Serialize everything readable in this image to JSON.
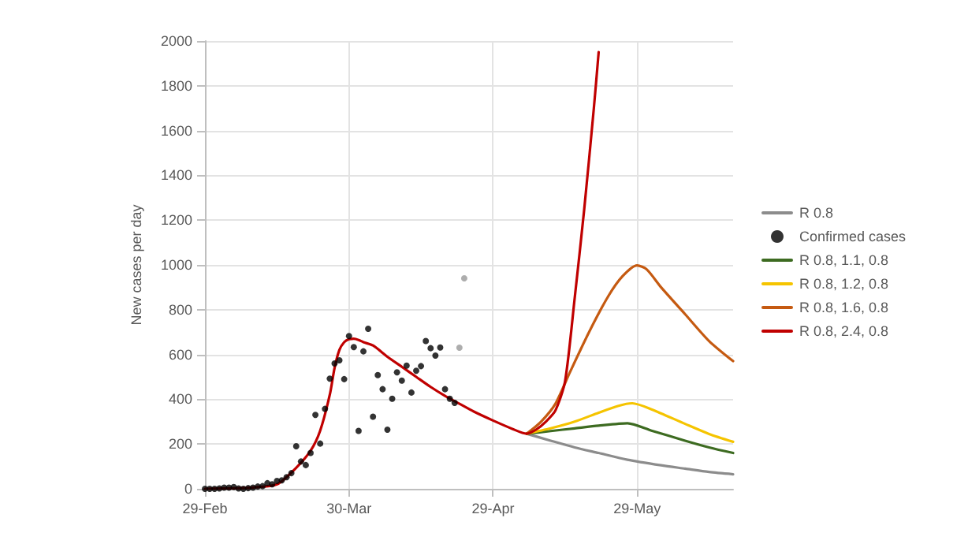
{
  "chart_data": {
    "type": "line",
    "ylabel": "New cases per day",
    "xlim": [
      "--02-29",
      "--06-18"
    ],
    "xticks": [
      {
        "value": "--02-29",
        "label": "29-Feb"
      },
      {
        "value": "--03-30",
        "label": "30-Mar"
      },
      {
        "value": "--04-29",
        "label": "29-Apr"
      },
      {
        "value": "--05-29",
        "label": "29-May"
      }
    ],
    "ylim": [
      0,
      2000
    ],
    "yticks": [
      0,
      200,
      400,
      600,
      800,
      1000,
      1200,
      1400,
      1600,
      1800,
      2000
    ],
    "grid": true,
    "legend": "right",
    "marker": "none",
    "line_style": "solid",
    "series": [
      {
        "name": "R 0.8",
        "color": "#8c8c8c",
        "x": [
          "--05-06",
          "--05-11",
          "--05-16",
          "--05-21",
          "--05-27",
          "--06-03",
          "--06-08",
          "--06-13",
          "--06-18"
        ],
        "values": [
          246,
          215,
          185,
          160,
          130,
          105,
          90,
          75,
          65
        ]
      },
      {
        "name": "Confirmed cases",
        "type": "scatter",
        "marker": "circle",
        "color": "#000000",
        "x": [
          "--02-29",
          "--03-01",
          "--03-02",
          "--03-03",
          "--03-04",
          "--03-05",
          "--03-06",
          "--03-07",
          "--03-08",
          "--03-09",
          "--03-10",
          "--03-11",
          "--03-12",
          "--03-13",
          "--03-14",
          "--03-15",
          "--03-16",
          "--03-17",
          "--03-18",
          "--03-19",
          "--03-20",
          "--03-21",
          "--03-22",
          "--03-23",
          "--03-24",
          "--03-25",
          "--03-26",
          "--03-27",
          "--03-28",
          "--03-29",
          "--03-30",
          "--03-31",
          "--04-01",
          "--04-02",
          "--04-03",
          "--04-04",
          "--04-05",
          "--04-06",
          "--04-07",
          "--04-08",
          "--04-09",
          "--04-10",
          "--04-11",
          "--04-12",
          "--04-13",
          "--04-14",
          "--04-15",
          "--04-16",
          "--04-17",
          "--04-18",
          "--04-19",
          "--04-20",
          "--04-21",
          "--04-22",
          "--04-23"
        ],
        "values": [
          0,
          0,
          0,
          2,
          5,
          5,
          8,
          2,
          0,
          3,
          5,
          10,
          12,
          25,
          20,
          35,
          38,
          52,
          70,
          190,
          122,
          106,
          160,
          330,
          202,
          357,
          492,
          560,
          574,
          490,
          682,
          633,
          259,
          614,
          715,
          322,
          508,
          445,
          264,
          402,
          520,
          483,
          550,
          430,
          527,
          548,
          660,
          628,
          595,
          631,
          445,
          402,
          384,
          630,
          940
        ],
        "colors": [
          "#000000",
          "#000000",
          "#000000",
          "#000000",
          "#000000",
          "#000000",
          "#000000",
          "#000000",
          "#000000",
          "#000000",
          "#000000",
          "#000000",
          "#000000",
          "#000000",
          "#000000",
          "#000000",
          "#000000",
          "#000000",
          "#000000",
          "#000000",
          "#000000",
          "#000000",
          "#000000",
          "#000000",
          "#000000",
          "#000000",
          "#000000",
          "#000000",
          "#000000",
          "#000000",
          "#000000",
          "#000000",
          "#000000",
          "#000000",
          "#000000",
          "#000000",
          "#000000",
          "#000000",
          "#000000",
          "#000000",
          "#000000",
          "#000000",
          "#000000",
          "#000000",
          "#000000",
          "#000000",
          "#000000",
          "#000000",
          "#000000",
          "#000000",
          "#000000",
          "#000000",
          "#000000",
          "#999999",
          "#999999"
        ]
      },
      {
        "name": "R 0.8, 1.1, 0.8",
        "color": "#3d6b21",
        "x": [
          "--05-06",
          "--05-11",
          "--05-16",
          "--05-21",
          "--05-27",
          "--06-01",
          "--06-08",
          "--06-13",
          "--06-18"
        ],
        "values": [
          246,
          258,
          270,
          282,
          293,
          260,
          215,
          185,
          160
        ]
      },
      {
        "name": "R 0.8, 1.2, 0.8",
        "color": "#f5c400",
        "x": [
          "--05-06",
          "--05-11",
          "--05-16",
          "--05-21",
          "--05-25",
          "--05-28",
          "--06-01",
          "--06-08",
          "--06-13",
          "--06-18"
        ],
        "values": [
          246,
          270,
          300,
          340,
          370,
          382,
          355,
          290,
          245,
          210
        ]
      },
      {
        "name": "R 0.8, 1.6, 0.8",
        "color": "#c55a11",
        "x": [
          "--05-06",
          "--05-09",
          "--05-12",
          "--05-15",
          "--05-19",
          "--05-23",
          "--05-26",
          "--05-29",
          "--05-31",
          "--06-03",
          "--06-08",
          "--06-13",
          "--06-18"
        ],
        "values": [
          246,
          300,
          380,
          520,
          700,
          860,
          950,
          998,
          980,
          900,
          780,
          660,
          570
        ]
      },
      {
        "name": "R 0.8, 2.4, 0.8",
        "color": "#c00000",
        "x": [
          "--02-29",
          "--03-05",
          "--03-10",
          "--03-15",
          "--03-19",
          "--03-22",
          "--03-24",
          "--03-26",
          "--03-27",
          "--03-28",
          "--03-29",
          "--03-30",
          "--03-31",
          "--04-01",
          "--04-02",
          "--04-04",
          "--04-07",
          "--04-10",
          "--04-13",
          "--04-16",
          "--04-19",
          "--04-22",
          "--04-25",
          "--04-29",
          "--05-03",
          "--05-06",
          "--05-08",
          "--05-10",
          "--05-12",
          "--05-14",
          "--05-16",
          "--05-18",
          "--05-20",
          "--05-21"
        ],
        "values": [
          0,
          2,
          6,
          20,
          94,
          170,
          260,
          420,
          540,
          620,
          655,
          668,
          670,
          665,
          655,
          640,
          590,
          545,
          500,
          455,
          415,
          380,
          345,
          305,
          268,
          246,
          265,
          300,
          350,
          480,
          850,
          1250,
          1700,
          1950
        ]
      }
    ]
  }
}
